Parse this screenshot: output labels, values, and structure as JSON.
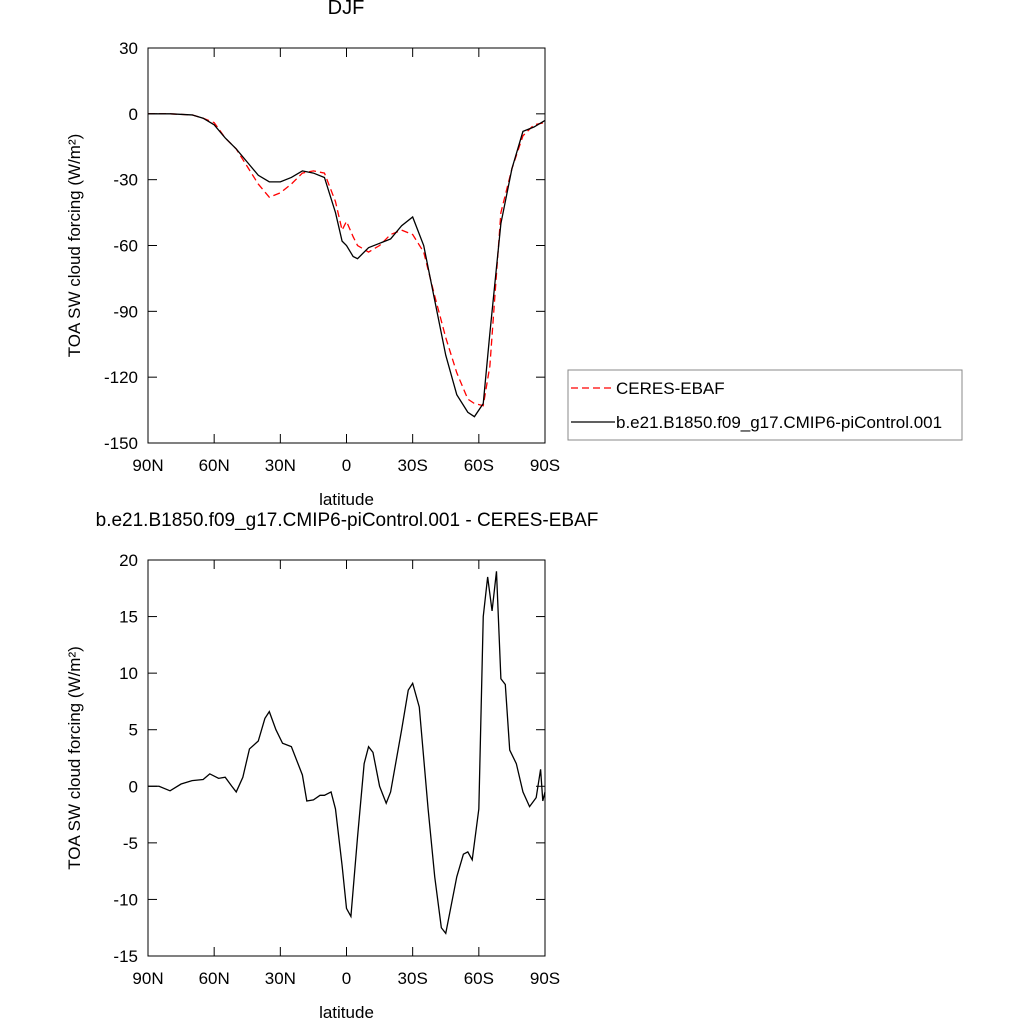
{
  "chart_data": [
    {
      "type": "line",
      "title": "DJF",
      "xlabel": "latitude",
      "ylabel": "TOA SW cloud forcing (W/m²)",
      "xlim": [
        90,
        -90
      ],
      "ylim": [
        -150,
        30
      ],
      "xticks": [
        {
          "value": 90,
          "label": "90N"
        },
        {
          "value": 60,
          "label": "60N"
        },
        {
          "value": 30,
          "label": "30N"
        },
        0,
        {
          "value": -30,
          "label": "30S"
        },
        {
          "value": -60,
          "label": "60S"
        },
        {
          "value": -90,
          "label": "90S"
        }
      ],
      "yticks": [
        30,
        0,
        -30,
        -60,
        -90,
        -120,
        -150
      ],
      "legend": "right",
      "x": [
        90,
        80,
        70,
        65,
        60,
        55,
        50,
        45,
        40,
        35,
        30,
        25,
        20,
        15,
        10,
        5,
        2,
        0,
        -3,
        -5,
        -10,
        -15,
        -20,
        -25,
        -30,
        -35,
        -40,
        -45,
        -50,
        -55,
        -58,
        -62,
        -65,
        -70,
        -75,
        -80,
        -85,
        -90
      ],
      "series": [
        {
          "name": "CERES-EBAF",
          "color": "#ff0000",
          "dashed": true,
          "values": [
            0,
            0,
            -0.5,
            -2,
            -4,
            -11,
            -16,
            -24,
            -32,
            -38,
            -36,
            -32,
            -27,
            -26,
            -27,
            -40,
            -53,
            -49,
            -56,
            -60,
            -63,
            -60,
            -55,
            -53,
            -55,
            -63,
            -83,
            -102,
            -118,
            -130,
            -132,
            -133,
            -115,
            -45,
            -25,
            -10,
            -5,
            -4
          ]
        },
        {
          "name": "b.e21.B1850.f09_g17.CMIP6-piControl.001",
          "color": "#000000",
          "dashed": false,
          "values": [
            0,
            0,
            -0.5,
            -2,
            -5,
            -11,
            -16,
            -22,
            -28,
            -31,
            -31,
            -29,
            -26,
            -27,
            -29,
            -45,
            -58,
            -60,
            -65,
            -66,
            -61,
            -59,
            -57,
            -51,
            -47,
            -60,
            -85,
            -110,
            -128,
            -136,
            -138,
            -132,
            -100,
            -50,
            -25,
            -8,
            -6,
            -3
          ]
        }
      ]
    },
    {
      "type": "line",
      "title": "b.e21.B1850.f09_g17.CMIP6-piControl.001 - CERES-EBAF",
      "xlabel": "latitude",
      "ylabel": "TOA SW cloud forcing (W/m²)",
      "xlim": [
        90,
        -90
      ],
      "ylim": [
        -15,
        20
      ],
      "xticks": [
        {
          "value": 90,
          "label": "90N"
        },
        {
          "value": 60,
          "label": "60N"
        },
        {
          "value": 30,
          "label": "30N"
        },
        0,
        {
          "value": -30,
          "label": "30S"
        },
        {
          "value": -60,
          "label": "60S"
        },
        {
          "value": -90,
          "label": "90S"
        }
      ],
      "yticks": [
        20,
        15,
        10,
        5,
        0,
        -5,
        -10,
        -15
      ],
      "x": [
        90,
        85,
        80,
        75,
        70,
        65,
        62,
        58,
        55,
        52,
        50,
        47,
        44,
        40,
        37,
        35,
        32,
        29,
        25,
        22,
        20,
        18,
        15,
        12,
        10,
        7,
        5,
        2,
        0,
        -2,
        -5,
        -8,
        -10,
        -12,
        -15,
        -18,
        -20,
        -25,
        -28,
        -30,
        -33,
        -37,
        -40,
        -43,
        -45,
        -48,
        -50,
        -53,
        -55,
        -57,
        -60,
        -62,
        -64,
        -66,
        -68,
        -70,
        -72,
        -74,
        -77,
        -80,
        -83,
        -86,
        -88,
        -89,
        -90
      ],
      "series": [
        {
          "color": "#000000",
          "dashed": false,
          "values": [
            0,
            0,
            -0.4,
            0.2,
            0.5,
            0.6,
            1.1,
            0.7,
            0.8,
            0,
            -0.5,
            0.8,
            3.3,
            4,
            6,
            6.6,
            5,
            3.8,
            3.5,
            2,
            1,
            -1.3,
            -1.2,
            -0.8,
            -0.8,
            -0.5,
            -2,
            -7,
            -10.8,
            -11.5,
            -4.5,
            2,
            3.5,
            3,
            0,
            -1.5,
            -0.5,
            5,
            8.5,
            9.1,
            7,
            -2,
            -8,
            -12.5,
            -13,
            -10,
            -8,
            -6,
            -5.8,
            -6.5,
            -2,
            15,
            18.5,
            15.5,
            19,
            9.5,
            9,
            3.2,
            2,
            -0.5,
            -1.8,
            -1,
            1.5,
            -1.3,
            -0.5
          ]
        }
      ]
    }
  ]
}
